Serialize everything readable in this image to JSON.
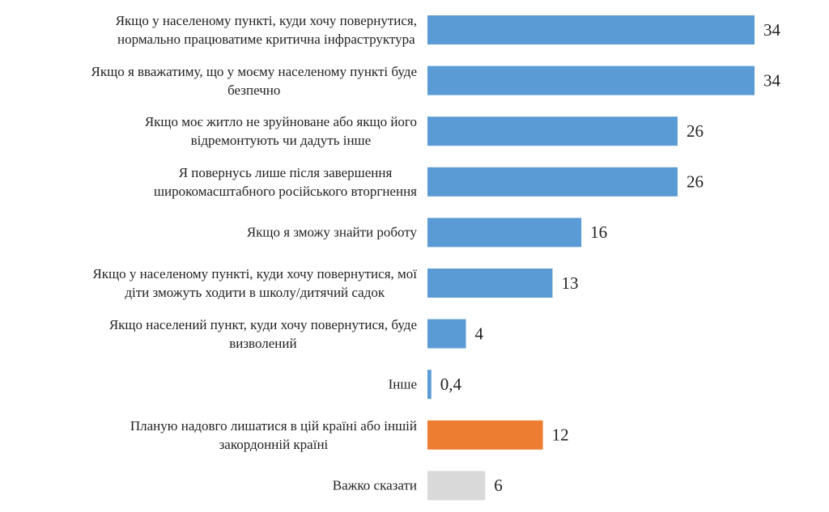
{
  "chart_data": {
    "type": "bar",
    "orientation": "horizontal",
    "categories": [
      "Якщо у населеному пункті, куди хочу повернутися,\nнормально працюватиме критична інфраструктура",
      "Якщо я вважатиму, що у моєму населеному пункті буде\nбезпечно",
      "Якщо моє житло не зруйноване або якщо його\nвідремонтують чи дадуть інше",
      "Я повернусь лише після завершення\nширокомасштабного російського вторгнення",
      "Якщо я зможу знайти роботу",
      "Якщо у населеному пункті, куди хочу повернутися, мої\nдіти зможуть ходити в школу/дитячий садок",
      "Якщо населений пункт, куди хочу повернутися, буде\nвизволений",
      "Інше",
      "Планую надовго лишатися в цій країні або іншій\nзакордонній країні",
      "Важко сказати"
    ],
    "values": [
      34,
      34,
      26,
      26,
      16,
      13,
      4,
      0.4,
      12,
      6
    ],
    "value_labels": [
      "34",
      "34",
      "26",
      "26",
      "16",
      "13",
      "4",
      "0,4",
      "12",
      "6"
    ],
    "colors": [
      "#5b9bd5",
      "#5b9bd5",
      "#5b9bd5",
      "#5b9bd5",
      "#5b9bd5",
      "#5b9bd5",
      "#5b9bd5",
      "#5b9bd5",
      "#ed7d31",
      "#d9d9d9"
    ]
  }
}
